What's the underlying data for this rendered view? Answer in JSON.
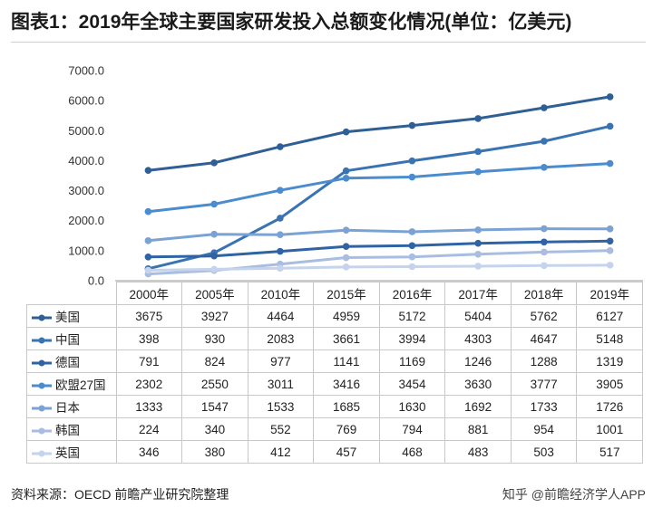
{
  "title": "图表1：2019年全球主要国家研发投入总额变化情况(单位：亿美元)",
  "source": "资料来源：OECD 前瞻产业研究院整理",
  "credit": "知乎 @前瞻经济学人APP",
  "chart_data": {
    "type": "line",
    "title": "图表1：2019年全球主要国家研发投入总额变化情况(单位：亿美元)",
    "categories": [
      "2000年",
      "2005年",
      "2010年",
      "2015年",
      "2016年",
      "2017年",
      "2018年",
      "2019年"
    ],
    "yticks": [
      "7000.0",
      "6000.0",
      "5000.0",
      "4000.0",
      "3000.0",
      "2000.0",
      "1000.0",
      "0.0"
    ],
    "ylim": [
      0,
      7000
    ],
    "grid": false,
    "series": [
      {
        "name": "美国",
        "color": "#2e5f95",
        "values": [
          3675,
          3927,
          4464,
          4959,
          5172,
          5404,
          5762,
          6127
        ]
      },
      {
        "name": "中国",
        "color": "#3a73b1",
        "values": [
          398,
          930,
          2083,
          3661,
          3994,
          4303,
          4647,
          5148
        ]
      },
      {
        "name": "德国",
        "color": "#2f63a3",
        "values": [
          791,
          824,
          977,
          1141,
          1169,
          1246,
          1288,
          1319
        ]
      },
      {
        "name": "欧盟27国",
        "color": "#4a8ccd",
        "values": [
          2302,
          2550,
          3011,
          3416,
          3454,
          3630,
          3777,
          3905
        ]
      },
      {
        "name": "日本",
        "color": "#7ba2d4",
        "values": [
          1333,
          1547,
          1533,
          1685,
          1630,
          1692,
          1733,
          1726
        ]
      },
      {
        "name": "韩国",
        "color": "#a9bde1",
        "values": [
          224,
          340,
          552,
          769,
          794,
          881,
          954,
          1001
        ]
      },
      {
        "name": "英国",
        "color": "#c5d3ec",
        "values": [
          346,
          380,
          412,
          457,
          468,
          483,
          503,
          517
        ]
      }
    ]
  }
}
